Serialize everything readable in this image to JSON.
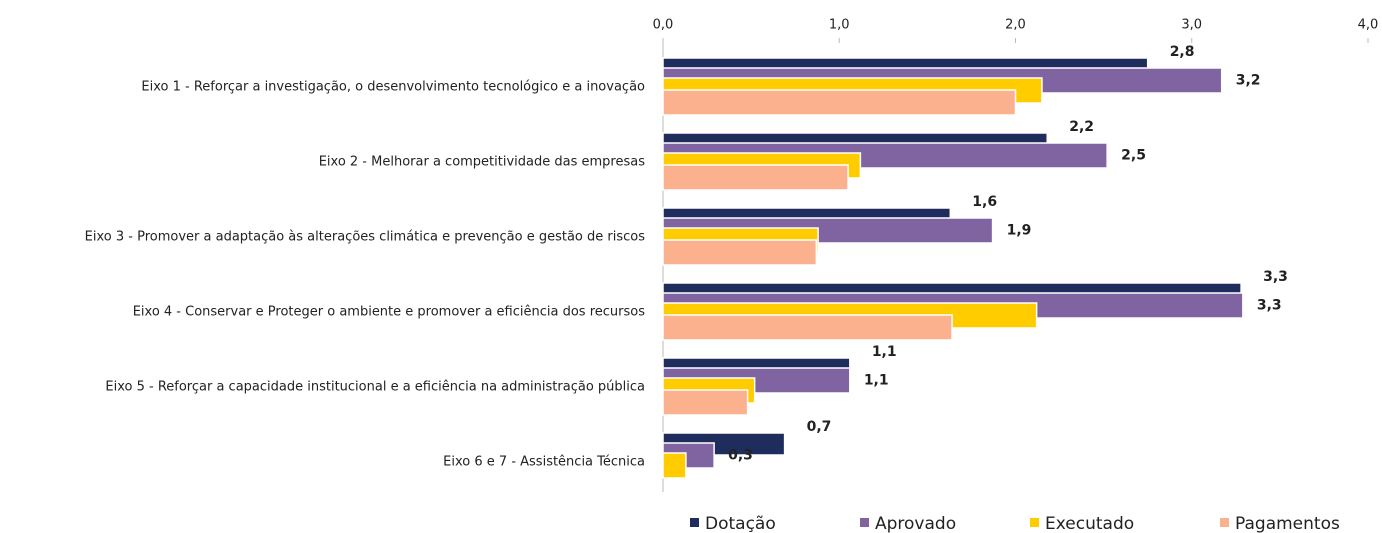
{
  "chart_data": {
    "type": "hbar",
    "categories": [
      "Eixo 1 - Reforçar a investigação, o desenvolvimento tecnológico e a inovação",
      "Eixo 2 - Melhorar a competitividade das empresas",
      "Eixo 3 - Promover a adaptação às alterações climática e prevenção e gestão de riscos",
      "Eixo 4 - Conservar e Proteger o ambiente e promover a eficiência dos recursos",
      "Eixo 5 - Reforçar a capacidade institucional e a eficiência na administração pública",
      "Eixo 6 e 7 - Assistência Técnica"
    ],
    "series": [
      {
        "name": "Dotação",
        "color": "#1f2d5c",
        "values": [
          2.75,
          2.18,
          1.63,
          3.28,
          1.06,
          0.69
        ],
        "value_labels": [
          "2,8",
          "2,2",
          "1,6",
          "3,3",
          "1,1",
          "0,7"
        ]
      },
      {
        "name": "Aprovado",
        "color": "#8064a2",
        "values": [
          3.17,
          2.52,
          1.87,
          3.29,
          1.06,
          0.29
        ],
        "value_labels": [
          "3,2",
          "2,5",
          "1,9",
          "3,3",
          "1,1",
          "0,3"
        ]
      },
      {
        "name": "Executado",
        "color": "#ffcc00",
        "values": [
          2.15,
          1.12,
          0.88,
          2.12,
          0.52,
          0.13
        ]
      },
      {
        "name": "Pagamentos",
        "color": "#fbb08e",
        "values": [
          2.0,
          1.05,
          0.87,
          1.64,
          0.48,
          0
        ]
      }
    ],
    "xlim": [
      0,
      4
    ],
    "xticks": [
      {
        "value": 0,
        "label": "0,0"
      },
      {
        "value": 1,
        "label": "1,0"
      },
      {
        "value": 2,
        "label": "2,0"
      },
      {
        "value": 3,
        "label": "3,0"
      },
      {
        "value": 4,
        "label": "4,0"
      }
    ],
    "legend": "bottom"
  }
}
